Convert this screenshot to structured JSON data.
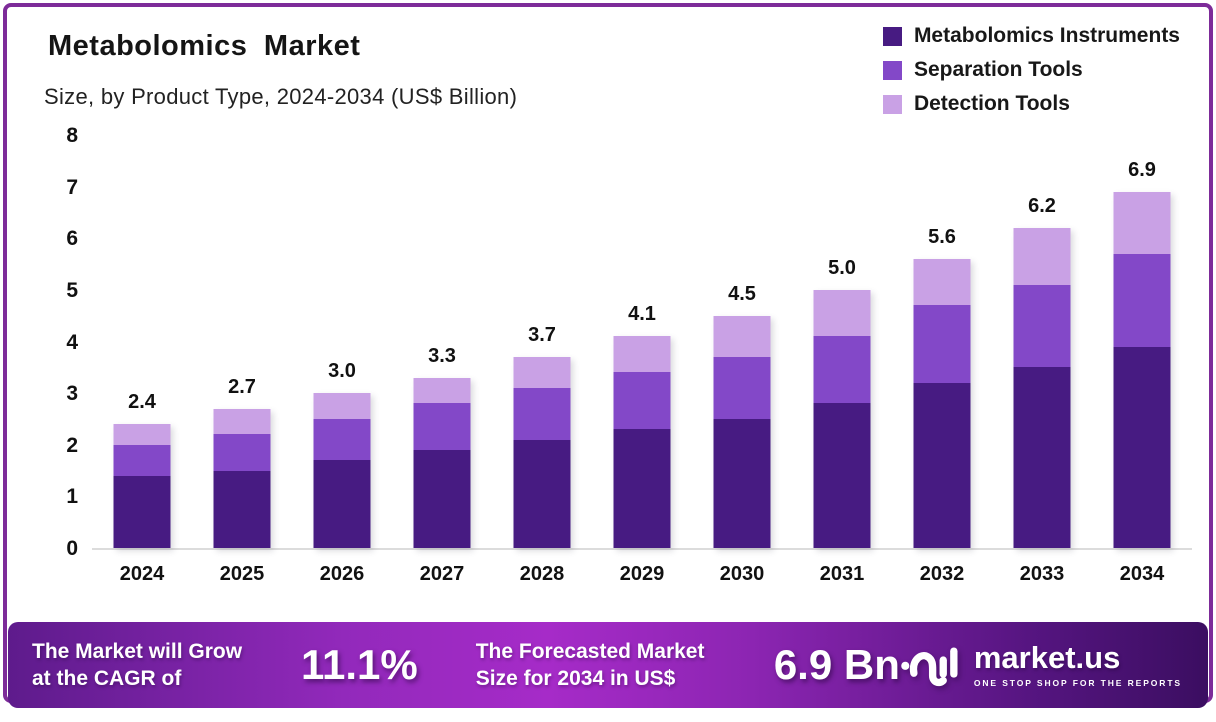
{
  "header": {
    "title": "Metabolomics Market",
    "subtitle": "Size, by Product Type, 2024-2034 (US$ Billion)"
  },
  "legend": {
    "position": "top-right",
    "items": [
      {
        "label": "Metabolomics Instruments",
        "color": "#471b82"
      },
      {
        "label": "Separation Tools",
        "color": "#8348c8"
      },
      {
        "label": "Detection Tools",
        "color": "#c9a1e5"
      }
    ]
  },
  "chart_data": {
    "type": "bar",
    "stacked": true,
    "title": "Metabolomics Market Size, by Product Type, 2024-2034 (US$ Billion)",
    "categories": [
      "2024",
      "2025",
      "2026",
      "2027",
      "2028",
      "2029",
      "2030",
      "2031",
      "2032",
      "2033",
      "2034"
    ],
    "series": [
      {
        "name": "Metabolomics Instruments",
        "color": "#471b82",
        "values": [
          1.4,
          1.5,
          1.7,
          1.9,
          2.1,
          2.3,
          2.5,
          2.8,
          3.2,
          3.5,
          3.9
        ]
      },
      {
        "name": "Separation Tools",
        "color": "#8348c8",
        "values": [
          0.6,
          0.7,
          0.8,
          0.9,
          1.0,
          1.1,
          1.2,
          1.3,
          1.5,
          1.6,
          1.8
        ]
      },
      {
        "name": "Detection Tools",
        "color": "#c9a1e5",
        "values": [
          0.4,
          0.5,
          0.5,
          0.5,
          0.6,
          0.7,
          0.8,
          0.9,
          0.9,
          1.1,
          1.2
        ]
      }
    ],
    "totals": [
      2.4,
      2.7,
      3.0,
      3.3,
      3.7,
      4.1,
      4.5,
      5.0,
      5.6,
      6.2,
      6.9
    ],
    "xlabel": "",
    "ylabel": "",
    "ylim": [
      0,
      8
    ],
    "yticks": [
      0,
      1,
      2,
      3,
      4,
      5,
      6,
      7,
      8
    ],
    "grid": false,
    "unit": "US$ Billion"
  },
  "banner": {
    "cagr_label_line1": "The Market will Grow",
    "cagr_label_line2": "at the CAGR of",
    "cagr_value": "11.1%",
    "forecast_label_line1": "The Forecasted Market",
    "forecast_label_line2": "Size for 2034 in US$",
    "forecast_value": "6.9 Bn",
    "logo_name": "market.us",
    "logo_tagline": "ONE STOP SHOP FOR THE REPORTS"
  },
  "colors": {
    "frame_border": "#7d2b99",
    "axis_line": "#dcdcdc",
    "text": "#111111",
    "banner_left": "#5e1b8c",
    "banner_center": "#a62bc8",
    "banner_right": "#3b0e61"
  }
}
